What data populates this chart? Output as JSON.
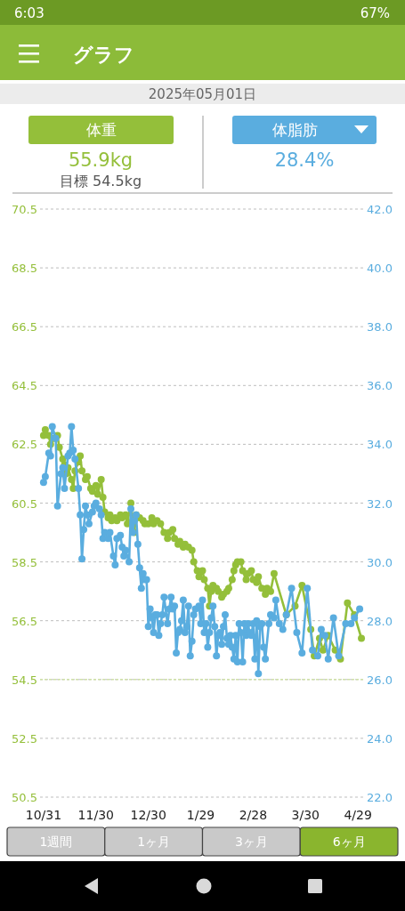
{
  "chart_data": {
    "type": "line",
    "title": "グラフ",
    "subtitle": "2025年05月01日",
    "annotations": [
      "6:03",
      "67%",
      "55.9kg",
      "目標 54.5kg",
      "28.4%",
      "1週間",
      "1ヶ月",
      "3ヶ月",
      "6ヶ月"
    ],
    "xlim": [
      "2024-10-29",
      "2025-05-02"
    ],
    "xticks": [
      {
        "value": "2024-10-31",
        "label": "10/31"
      },
      {
        "value": "2024-11-30",
        "label": "11/30"
      },
      {
        "value": "2024-12-30",
        "label": "12/30"
      },
      {
        "value": "2025-01-29",
        "label": "1/29"
      },
      {
        "value": "2025-02-28",
        "label": "2/28"
      },
      {
        "value": "2025-03-30",
        "label": "3/30"
      },
      {
        "value": "2025-04-29",
        "label": "4/29"
      }
    ],
    "ylim": [
      50.5,
      70.5
    ],
    "yticks": [
      50.5,
      52.5,
      54.5,
      56.5,
      58.5,
      60.5,
      62.5,
      64.5,
      66.5,
      68.5,
      70.5
    ],
    "y2lim": [
      22,
      42
    ],
    "y2ticks": [
      {
        "value": 22,
        "label": "22.0"
      },
      {
        "value": 24,
        "label": "24.0"
      },
      {
        "value": 26,
        "label": "26.0"
      },
      {
        "value": 28,
        "label": "28.0"
      },
      {
        "value": 30,
        "label": "30.0"
      },
      {
        "value": 32,
        "label": "32.0"
      },
      {
        "value": 34,
        "label": "34.0"
      },
      {
        "value": 36,
        "label": "36.0"
      },
      {
        "value": 38,
        "label": "38.0"
      },
      {
        "value": 40,
        "label": "40.0"
      },
      {
        "value": 42,
        "label": "42.0"
      }
    ],
    "grid": "y",
    "legend": "top",
    "marker": "circle",
    "ref_lines": [
      {
        "axis": "y",
        "value": 54.5,
        "color": "#cfe0a8"
      }
    ],
    "series": [
      {
        "name": "体重",
        "color": "#94bf3a",
        "x": [
          "2024-10-31",
          "2024-11-01",
          "2024-11-03",
          "2024-11-04",
          "2024-11-06",
          "2024-11-08",
          "2024-11-09",
          "2024-11-11",
          "2024-11-12",
          "2024-11-13",
          "2024-11-14",
          "2024-11-16",
          "2024-11-17",
          "2024-11-18",
          "2024-11-20",
          "2024-11-21",
          "2024-11-22",
          "2024-11-24",
          "2024-11-25",
          "2024-11-27",
          "2024-11-28",
          "2024-11-30",
          "2024-12-01",
          "2024-12-03",
          "2024-12-04",
          "2024-12-05",
          "2024-12-07",
          "2024-12-08",
          "2024-12-09",
          "2024-12-11",
          "2024-12-12",
          "2024-12-14",
          "2024-12-15",
          "2024-12-17",
          "2024-12-18",
          "2024-12-20",
          "2024-12-21",
          "2024-12-22",
          "2024-12-23",
          "2024-12-25",
          "2024-12-27",
          "2024-12-28",
          "2024-12-30",
          "2025-01-01",
          "2025-01-02",
          "2025-01-04",
          "2025-01-06",
          "2025-01-08",
          "2025-01-10",
          "2025-01-11",
          "2025-01-13",
          "2025-01-14",
          "2025-01-16",
          "2025-01-17",
          "2025-01-19",
          "2025-01-20",
          "2025-01-22",
          "2025-01-24",
          "2025-01-25",
          "2025-01-27",
          "2025-01-28",
          "2025-01-30",
          "2025-01-31",
          "2025-02-02",
          "2025-02-03",
          "2025-02-04",
          "2025-02-05",
          "2025-02-07",
          "2025-02-08",
          "2025-02-10",
          "2025-02-11",
          "2025-02-13",
          "2025-02-14",
          "2025-02-16",
          "2025-02-17",
          "2025-02-18",
          "2025-02-19",
          "2025-02-21",
          "2025-02-22",
          "2025-02-24",
          "2025-02-25",
          "2025-02-27",
          "2025-02-28",
          "2025-03-02",
          "2025-03-03",
          "2025-03-05",
          "2025-03-07",
          "2025-03-08",
          "2025-03-10",
          "2025-03-12",
          "2025-03-19",
          "2025-03-24",
          "2025-03-28",
          "2025-04-02",
          "2025-04-04",
          "2025-04-07",
          "2025-04-09",
          "2025-04-12",
          "2025-04-16",
          "2025-04-19",
          "2025-04-23",
          "2025-04-27",
          "2025-05-01"
        ],
        "values": [
          62.8,
          63.0,
          62.8,
          62.5,
          62.7,
          62.8,
          62.4,
          62.0,
          61.8,
          61.5,
          61.7,
          61.3,
          61.0,
          61.6,
          61.9,
          62.1,
          61.6,
          61.3,
          61.4,
          61.0,
          60.9,
          61.1,
          60.8,
          61.3,
          60.7,
          60.2,
          60.0,
          60.1,
          59.9,
          60.0,
          59.9,
          60.1,
          60.0,
          60.1,
          59.8,
          60.5,
          59.9,
          59.5,
          60.1,
          60.0,
          59.9,
          59.8,
          59.8,
          60.0,
          59.8,
          59.9,
          59.8,
          59.5,
          59.3,
          59.5,
          59.6,
          59.3,
          59.1,
          59.2,
          59.0,
          59.1,
          59.0,
          58.9,
          58.5,
          58.2,
          58.0,
          58.2,
          57.9,
          57.6,
          57.0,
          57.5,
          57.7,
          57.6,
          57.5,
          57.3,
          57.4,
          57.5,
          57.6,
          57.9,
          58.2,
          58.4,
          58.5,
          58.5,
          58.2,
          57.9,
          58.1,
          58.2,
          57.9,
          57.8,
          58.0,
          57.6,
          57.4,
          57.6,
          57.5,
          58.1,
          56.7,
          57.0,
          57.7,
          56.2,
          55.3,
          55.9,
          55.5,
          56.0,
          55.5,
          55.2,
          57.1,
          56.7,
          55.9
        ]
      },
      {
        "name": "体脂肪",
        "color": "#5aaddf",
        "axis": "y2",
        "x": [
          "2024-10-31",
          "2024-11-01",
          "2024-11-03",
          "2024-11-04",
          "2024-11-05",
          "2024-11-07",
          "2024-11-08",
          "2024-11-10",
          "2024-11-11",
          "2024-11-12",
          "2024-11-14",
          "2024-11-15",
          "2024-11-16",
          "2024-11-17",
          "2024-11-18",
          "2024-11-20",
          "2024-11-21",
          "2024-11-22",
          "2024-11-23",
          "2024-11-24",
          "2024-11-25",
          "2024-11-26",
          "2024-11-28",
          "2024-11-29",
          "2024-11-30",
          "2024-12-02",
          "2024-12-03",
          "2024-12-04",
          "2024-12-05",
          "2024-12-07",
          "2024-12-08",
          "2024-12-10",
          "2024-12-11",
          "2024-12-12",
          "2024-12-14",
          "2024-12-15",
          "2024-12-16",
          "2024-12-17",
          "2024-12-19",
          "2024-12-20",
          "2024-12-21",
          "2024-12-22",
          "2024-12-23",
          "2024-12-24",
          "2024-12-25",
          "2024-12-26",
          "2024-12-27",
          "2024-12-28",
          "2024-12-29",
          "2024-12-30",
          "2024-12-31",
          "2025-01-01",
          "2025-01-02",
          "2025-01-03",
          "2025-01-04",
          "2025-01-05",
          "2025-01-06",
          "2025-01-07",
          "2025-01-08",
          "2025-01-10",
          "2025-01-11",
          "2025-01-12",
          "2025-01-13",
          "2025-01-14",
          "2025-01-15",
          "2025-01-16",
          "2025-01-17",
          "2025-01-18",
          "2025-01-19",
          "2025-01-20",
          "2025-01-21",
          "2025-01-22",
          "2025-01-23",
          "2025-01-24",
          "2025-01-25",
          "2025-01-26",
          "2025-01-28",
          "2025-01-29",
          "2025-01-30",
          "2025-01-31",
          "2025-02-01",
          "2025-02-02",
          "2025-02-03",
          "2025-02-04",
          "2025-02-05",
          "2025-02-06",
          "2025-02-07",
          "2025-02-08",
          "2025-02-09",
          "2025-02-10",
          "2025-02-11",
          "2025-02-12",
          "2025-02-13",
          "2025-02-14",
          "2025-02-15",
          "2025-02-16",
          "2025-02-17",
          "2025-02-18",
          "2025-02-19",
          "2025-02-20",
          "2025-02-21",
          "2025-02-22",
          "2025-02-23",
          "2025-02-24",
          "2025-02-25",
          "2025-02-26",
          "2025-02-27",
          "2025-02-28",
          "2025-03-01",
          "2025-03-02",
          "2025-03-03",
          "2025-03-04",
          "2025-03-05",
          "2025-03-06",
          "2025-03-07",
          "2025-03-09",
          "2025-03-10",
          "2025-03-12",
          "2025-03-13",
          "2025-03-15",
          "2025-03-17",
          "2025-03-19",
          "2025-03-22",
          "2025-03-25",
          "2025-03-28",
          "2025-03-31",
          "2025-04-03",
          "2025-04-06",
          "2025-04-08",
          "2025-04-10",
          "2025-04-12",
          "2025-04-15",
          "2025-04-18",
          "2025-04-22",
          "2025-04-25",
          "2025-04-27",
          "2025-04-30"
        ],
        "values": [
          32.7,
          32.9,
          33.7,
          33.6,
          34.6,
          34.2,
          31.9,
          33.0,
          33.2,
          32.5,
          33.6,
          33.7,
          34.6,
          33.8,
          33.5,
          32.5,
          31.6,
          30.1,
          31.1,
          31.9,
          31.6,
          31.3,
          31.7,
          31.9,
          32.0,
          31.8,
          31.6,
          30.8,
          31.0,
          30.8,
          31.0,
          30.2,
          29.9,
          30.8,
          30.9,
          30.5,
          30.2,
          30.4,
          30.0,
          31.8,
          31.0,
          31.4,
          31.6,
          30.6,
          29.8,
          29.1,
          29.6,
          29.4,
          29.4,
          27.8,
          28.4,
          28.1,
          27.6,
          28.2,
          28.2,
          27.5,
          27.9,
          28.2,
          28.8,
          27.9,
          28.4,
          28.8,
          28.4,
          28.5,
          26.9,
          27.6,
          27.7,
          28.0,
          28.7,
          27.6,
          27.8,
          28.5,
          26.8,
          27.3,
          28.2,
          28.4,
          28.5,
          27.9,
          28.7,
          27.6,
          27.9,
          27.1,
          27.6,
          28.1,
          28.5,
          27.8,
          26.8,
          27.5,
          27.6,
          27.2,
          27.8,
          28.2,
          27.4,
          27.2,
          27.5,
          27.1,
          26.7,
          27.5,
          26.6,
          27.9,
          27.6,
          26.6,
          27.9,
          27.5,
          27.9,
          27.6,
          27.5,
          27.9,
          26.7,
          28.0,
          26.2,
          27.8,
          27.9,
          27.1,
          26.7,
          27.9,
          28.2,
          28.1,
          28.7,
          27.9,
          27.7,
          28.2,
          29.1,
          27.6,
          26.9,
          29.1,
          27.0,
          26.8,
          27.7,
          27.5,
          26.7,
          28.1,
          26.8,
          27.9,
          27.9,
          28.1,
          28.4
        ]
      }
    ]
  }
}
